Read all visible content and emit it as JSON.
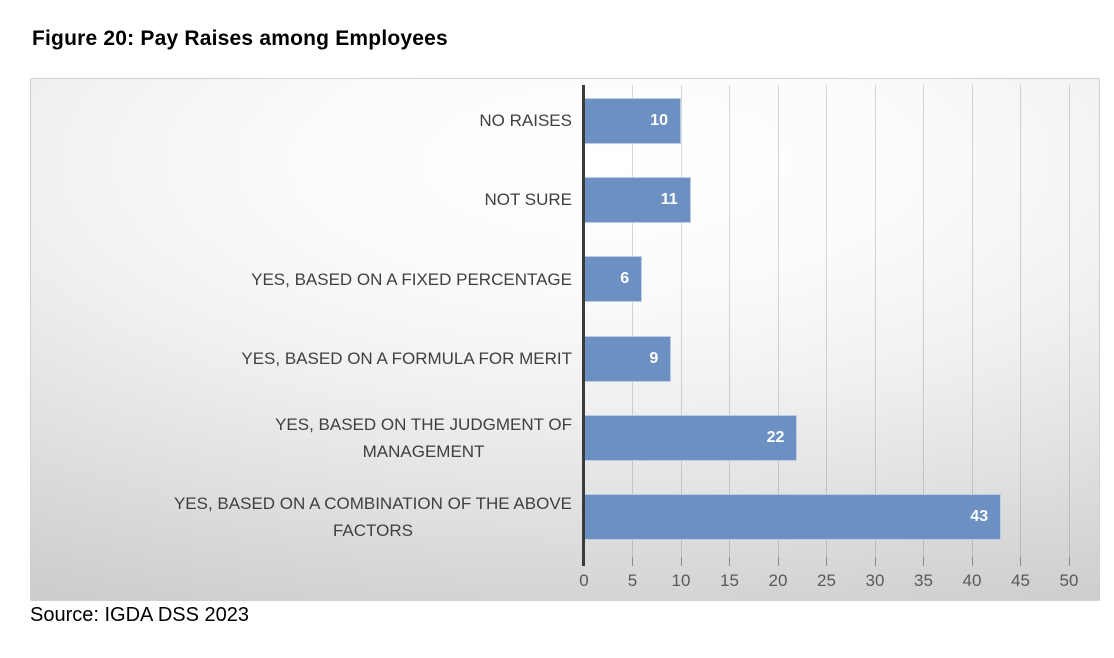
{
  "page": {
    "title": "Figure 20: Pay Raises among Employees",
    "source": "Source: IGDA DSS 2023"
  },
  "chart_data": {
    "type": "bar",
    "orientation": "horizontal",
    "title": "Figure 20: Pay Raises among Employees",
    "categories": [
      "NO RAISES",
      "NOT SURE",
      "YES, BASED ON A FIXED PERCENTAGE",
      "YES, BASED ON A FORMULA FOR MERIT",
      "YES, BASED ON THE JUDGMENT OF\nMANAGEMENT",
      "YES, BASED ON A COMBINATION OF THE ABOVE\nFACTORS"
    ],
    "values": [
      10,
      11,
      6,
      9,
      22,
      43
    ],
    "data_labels": [
      "10",
      "11",
      "6",
      "9",
      "22",
      "43"
    ],
    "xticks": [
      0,
      5,
      10,
      15,
      20,
      25,
      30,
      35,
      40,
      45,
      50
    ],
    "xlim": [
      0,
      50
    ],
    "xlabel": "",
    "ylabel": "",
    "grid": true,
    "legend": false,
    "colors": {
      "bar": "#6d90c3",
      "value_label": "#ffffff",
      "category_label": "#3f3f3f",
      "tick_label": "#595959",
      "axis_line": "#3b3b3b",
      "background_center": "#ffffff",
      "background_edge": "#c2c2c2"
    }
  }
}
